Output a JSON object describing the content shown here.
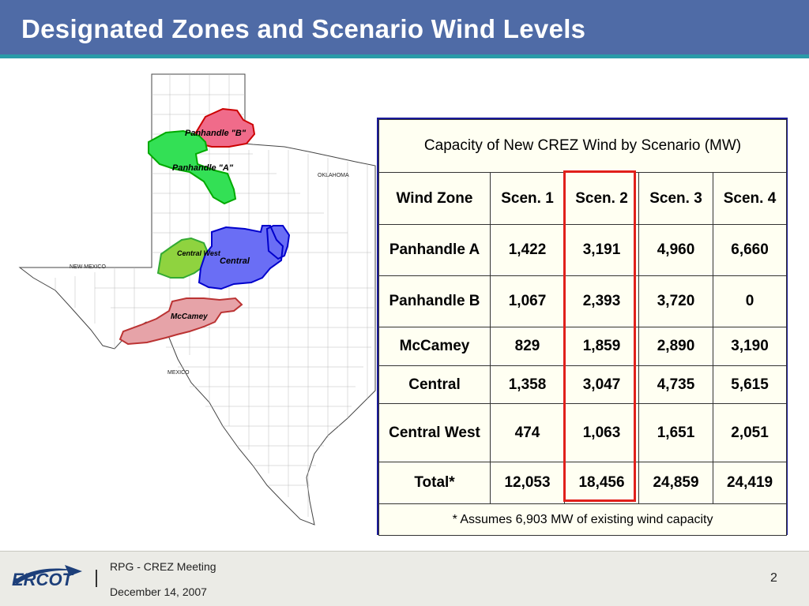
{
  "slide": {
    "title": "Designated Zones and Scenario Wind Levels"
  },
  "map": {
    "state_labels": {
      "oklahoma": "OKLAHOMA",
      "new_mexico": "NEW MEXICO",
      "mexico": "MEXICO"
    },
    "zones": [
      {
        "label": "Panhandle \"B\"",
        "color": "#f06b8a"
      },
      {
        "label": "Panhandle \"A\"",
        "color": "#33e055"
      },
      {
        "label": "Central West",
        "color": "#8fd33f"
      },
      {
        "label": "Central",
        "color": "#6a6ef5"
      },
      {
        "label": "McCamey",
        "color": "#e6a3a8"
      }
    ]
  },
  "table": {
    "caption": "Capacity of New CREZ Wind by Scenario (MW)",
    "headers": [
      "Wind Zone",
      "Scen. 1",
      "Scen. 2",
      "Scen. 3",
      "Scen. 4"
    ],
    "rows": [
      [
        "Panhandle A",
        "1,422",
        "3,191",
        "4,960",
        "6,660"
      ],
      [
        "Panhandle B",
        "1,067",
        "2,393",
        "3,720",
        "0"
      ],
      [
        "McCamey",
        "829",
        "1,859",
        "2,890",
        "3,190"
      ],
      [
        "Central",
        "1,358",
        "3,047",
        "4,735",
        "5,615"
      ],
      [
        "Central West",
        "474",
        "1,063",
        "1,651",
        "2,051"
      ],
      [
        "Total*",
        "12,053",
        "18,456",
        "24,859",
        "24,419"
      ]
    ],
    "footnote": "* Assumes 6,903 MW of existing wind capacity",
    "highlight_color": "#e0201b"
  },
  "footer": {
    "logo_text": "ERCOT",
    "meeting": "RPG - CREZ Meeting",
    "date": "December 14, 2007",
    "page": "2"
  }
}
